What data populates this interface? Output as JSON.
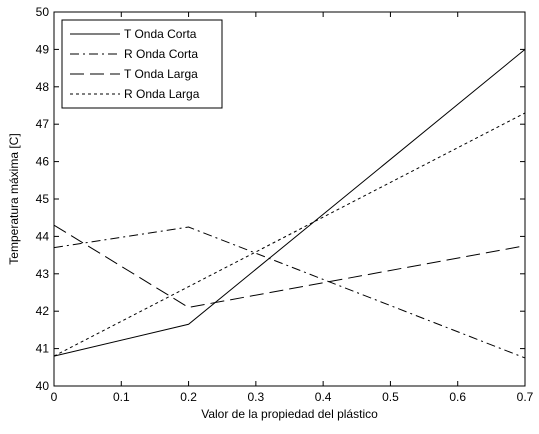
{
  "chart_data": {
    "type": "line",
    "title": "",
    "xlabel": "Valor de la propiedad del plástico",
    "ylabel": "Temperatura máxima [C]",
    "xlim": [
      0,
      0.7
    ],
    "ylim": [
      40,
      50
    ],
    "x_ticks": [
      "0",
      "0.1",
      "0.2",
      "0.3",
      "0.4",
      "0.5",
      "0.6",
      "0.7"
    ],
    "y_ticks": [
      "40",
      "41",
      "42",
      "43",
      "44",
      "45",
      "46",
      "47",
      "48",
      "49",
      "50"
    ],
    "grid": false,
    "legend_position": "top-left",
    "series": [
      {
        "name": "T Onda Corta",
        "line_style": "solid",
        "x": [
          0,
          0.2,
          0.7
        ],
        "y": [
          40.8,
          41.65,
          49.0
        ]
      },
      {
        "name": "R Onda Corta",
        "line_style": "dash-dot",
        "x": [
          0,
          0.2,
          0.7
        ],
        "y": [
          43.7,
          44.25,
          40.75
        ]
      },
      {
        "name": "T Onda Larga",
        "line_style": "long-dash",
        "x": [
          0,
          0.2,
          0.7
        ],
        "y": [
          44.3,
          42.1,
          43.75
        ]
      },
      {
        "name": "R Onda Larga",
        "line_style": "dotted",
        "x": [
          0,
          0.7
        ],
        "y": [
          40.8,
          47.3
        ]
      }
    ],
    "line_color": "#000000"
  }
}
